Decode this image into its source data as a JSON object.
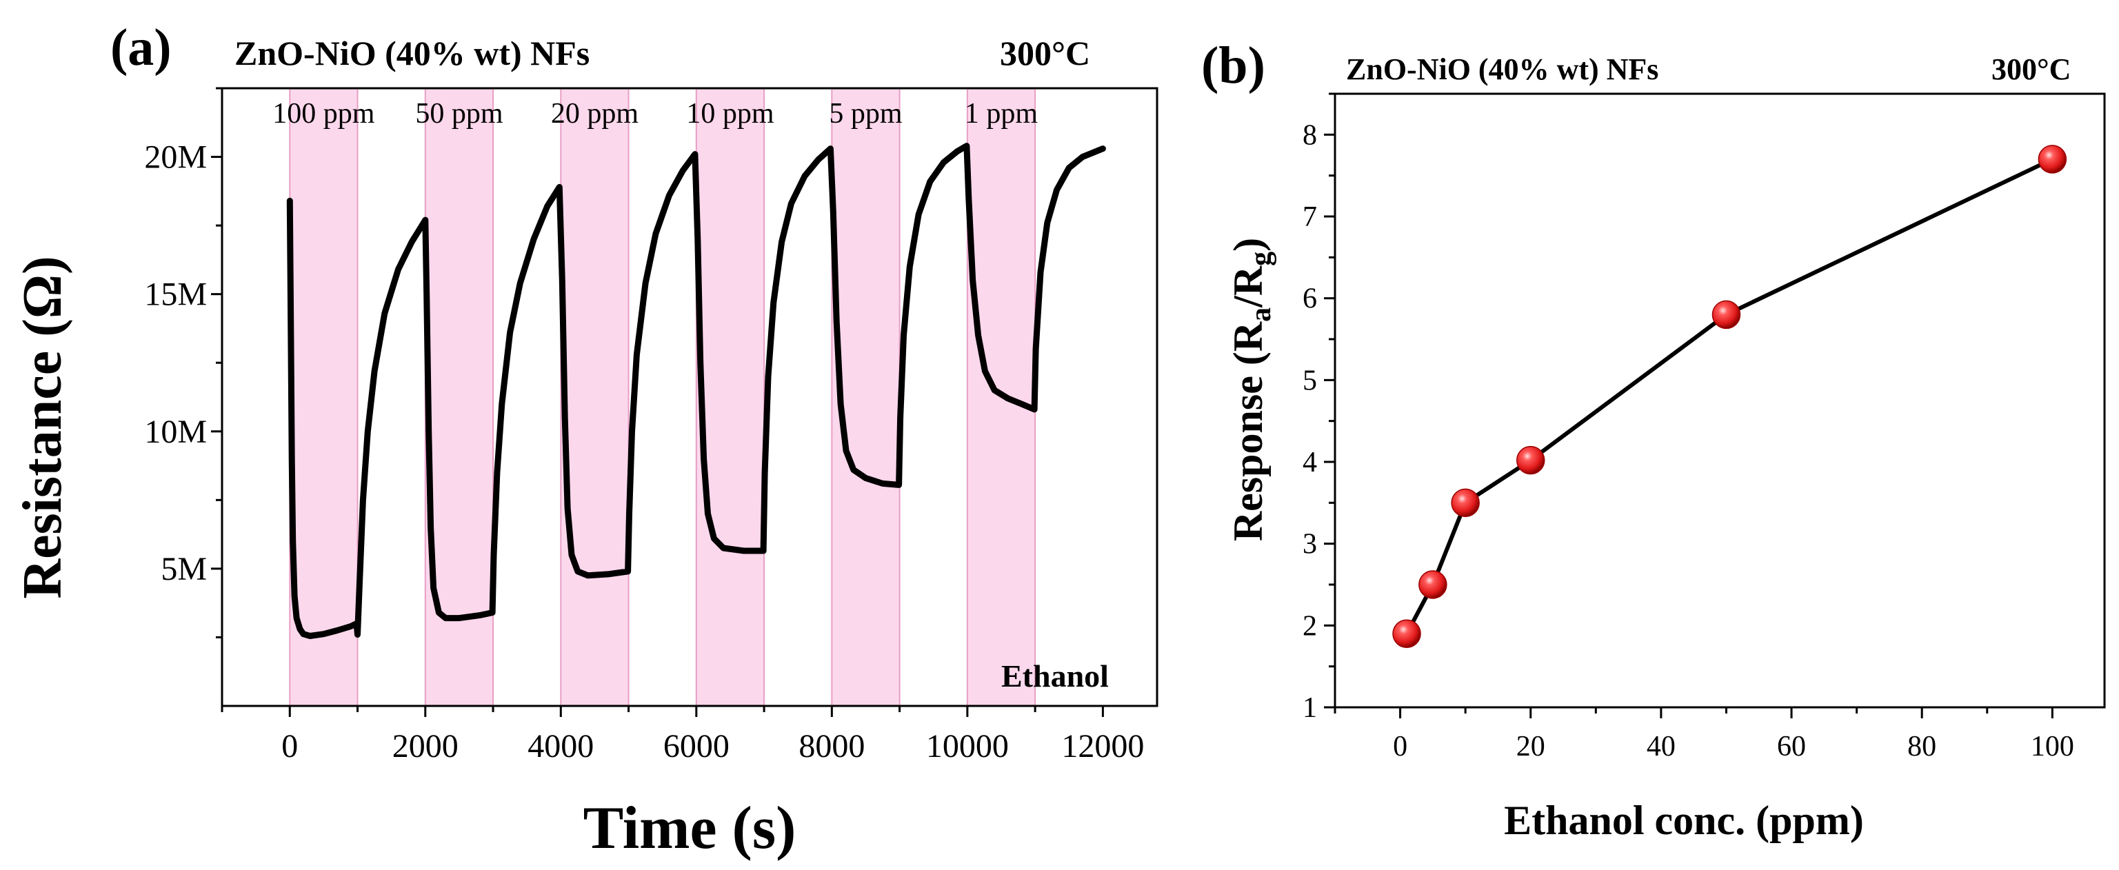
{
  "chart_data": [
    {
      "panel": "(a)",
      "type": "line",
      "title": "ZnO-NiO (40% wt) NFs",
      "temperature": "300°C",
      "xlabel": "Time (s)",
      "ylabel": "Resistance (Ω)",
      "xlim": [
        -1000,
        12800
      ],
      "ylim": [
        0,
        22.5
      ],
      "y_unit": "M",
      "xticks": [
        0,
        2000,
        4000,
        6000,
        8000,
        10000,
        12000
      ],
      "yticks": [
        {
          "value": 5,
          "label": "5M"
        },
        {
          "value": 10,
          "label": "10M"
        },
        {
          "value": 15,
          "label": "15M"
        },
        {
          "value": 20,
          "label": "20M"
        }
      ],
      "gas": "Ethanol",
      "exposures": [
        {
          "start": 0,
          "end": 1000,
          "label": "100 ppm"
        },
        {
          "start": 2000,
          "end": 3000,
          "label": "50 ppm"
        },
        {
          "start": 4000,
          "end": 5000,
          "label": "20 ppm"
        },
        {
          "start": 6000,
          "end": 7000,
          "label": "10 ppm"
        },
        {
          "start": 8000,
          "end": 9000,
          "label": "5 ppm"
        },
        {
          "start": 10000,
          "end": 11000,
          "label": "1 ppm"
        }
      ],
      "series": [
        {
          "name": "Resistance",
          "color": "#000000",
          "points": [
            [
              0,
              18.4
            ],
            [
              15,
              14.0
            ],
            [
              30,
              9.0
            ],
            [
              45,
              6.0
            ],
            [
              70,
              4.0
            ],
            [
              100,
              3.2
            ],
            [
              150,
              2.8
            ],
            [
              200,
              2.62
            ],
            [
              300,
              2.55
            ],
            [
              500,
              2.62
            ],
            [
              700,
              2.75
            ],
            [
              900,
              2.9
            ],
            [
              985,
              3.0
            ],
            [
              1000,
              2.6
            ],
            [
              1030,
              4.5
            ],
            [
              1080,
              7.5
            ],
            [
              1150,
              10.0
            ],
            [
              1250,
              12.2
            ],
            [
              1400,
              14.3
            ],
            [
              1600,
              15.9
            ],
            [
              1800,
              16.9
            ],
            [
              1950,
              17.5
            ],
            [
              2000,
              17.7
            ],
            [
              2020,
              15.0
            ],
            [
              2050,
              10.0
            ],
            [
              2080,
              6.5
            ],
            [
              2120,
              4.3
            ],
            [
              2200,
              3.4
            ],
            [
              2300,
              3.2
            ],
            [
              2500,
              3.2
            ],
            [
              2800,
              3.3
            ],
            [
              2990,
              3.4
            ],
            [
              3010,
              5.5
            ],
            [
              3060,
              8.5
            ],
            [
              3130,
              11.0
            ],
            [
              3250,
              13.6
            ],
            [
              3400,
              15.4
            ],
            [
              3600,
              17.0
            ],
            [
              3800,
              18.2
            ],
            [
              3980,
              18.9
            ],
            [
              4020,
              15.5
            ],
            [
              4060,
              10.5
            ],
            [
              4100,
              7.2
            ],
            [
              4160,
              5.5
            ],
            [
              4250,
              4.9
            ],
            [
              4400,
              4.75
            ],
            [
              4700,
              4.8
            ],
            [
              4990,
              4.9
            ],
            [
              5010,
              7.0
            ],
            [
              5050,
              10.0
            ],
            [
              5120,
              12.8
            ],
            [
              5250,
              15.4
            ],
            [
              5400,
              17.2
            ],
            [
              5600,
              18.6
            ],
            [
              5800,
              19.5
            ],
            [
              5980,
              20.1
            ],
            [
              6020,
              17.0
            ],
            [
              6060,
              12.5
            ],
            [
              6110,
              9.0
            ],
            [
              6170,
              7.0
            ],
            [
              6260,
              6.1
            ],
            [
              6400,
              5.75
            ],
            [
              6700,
              5.65
            ],
            [
              6990,
              5.65
            ],
            [
              7010,
              8.5
            ],
            [
              7060,
              12.0
            ],
            [
              7140,
              14.7
            ],
            [
              7260,
              16.9
            ],
            [
              7400,
              18.3
            ],
            [
              7600,
              19.3
            ],
            [
              7800,
              19.9
            ],
            [
              7980,
              20.3
            ],
            [
              8020,
              18.0
            ],
            [
              8070,
              14.0
            ],
            [
              8130,
              11.0
            ],
            [
              8210,
              9.3
            ],
            [
              8320,
              8.6
            ],
            [
              8500,
              8.3
            ],
            [
              8750,
              8.1
            ],
            [
              8990,
              8.05
            ],
            [
              9010,
              10.5
            ],
            [
              9060,
              13.5
            ],
            [
              9150,
              16.0
            ],
            [
              9280,
              17.9
            ],
            [
              9450,
              19.1
            ],
            [
              9650,
              19.8
            ],
            [
              9850,
              20.2
            ],
            [
              9990,
              20.4
            ],
            [
              10020,
              18.5
            ],
            [
              10080,
              15.5
            ],
            [
              10160,
              13.5
            ],
            [
              10260,
              12.2
            ],
            [
              10400,
              11.5
            ],
            [
              10600,
              11.2
            ],
            [
              10800,
              11.0
            ],
            [
              10990,
              10.8
            ],
            [
              11010,
              13.0
            ],
            [
              11080,
              15.8
            ],
            [
              11180,
              17.6
            ],
            [
              11320,
              18.8
            ],
            [
              11500,
              19.6
            ],
            [
              11700,
              20.0
            ],
            [
              11900,
              20.2
            ],
            [
              12000,
              20.3
            ]
          ]
        }
      ]
    },
    {
      "panel": "(b)",
      "type": "line",
      "title": "ZnO-NiO (40% wt) NFs",
      "temperature": "300°C",
      "xlabel": "Ethanol conc. (ppm)",
      "ylabel": "Response (Ra/Rg)",
      "ylabel_parts": {
        "lead": "Response (R",
        "sub1": "a",
        "mid": "/R",
        "sub2": "g",
        "tail": ")"
      },
      "xlim": [
        -10,
        108
      ],
      "ylim": [
        1,
        8.5
      ],
      "xticks": [
        0,
        20,
        40,
        60,
        80,
        100
      ],
      "yticks": [
        1,
        2,
        3,
        4,
        5,
        6,
        7,
        8
      ],
      "series": [
        {
          "name": "Response",
          "line_color": "#000000",
          "marker_color": "#e21b1b",
          "x": [
            1,
            5,
            10,
            20,
            50,
            100
          ],
          "y": [
            1.9,
            2.5,
            3.5,
            4.02,
            5.8,
            7.7
          ]
        }
      ]
    }
  ]
}
